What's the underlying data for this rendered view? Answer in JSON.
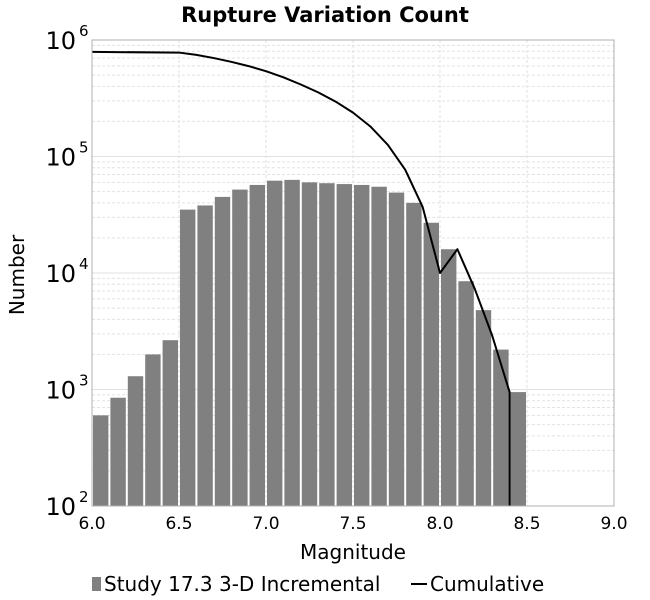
{
  "chart_data": {
    "type": "bar",
    "title": "Rupture Variation Count",
    "xlabel": "Magnitude",
    "ylabel": "Number",
    "xlim": [
      6.0,
      9.0
    ],
    "ylim": [
      100,
      1000000
    ],
    "yscale": "log",
    "grid": true,
    "legend_position": "bottom",
    "xticks": [
      "6.0",
      "6.5",
      "7.0",
      "7.5",
      "8.0",
      "8.5",
      "9.0"
    ],
    "yticks": [
      {
        "base": "10",
        "exp": "2",
        "value": 100
      },
      {
        "base": "10",
        "exp": "3",
        "value": 1000
      },
      {
        "base": "10",
        "exp": "4",
        "value": 10000
      },
      {
        "base": "10",
        "exp": "5",
        "value": 100000
      },
      {
        "base": "10",
        "exp": "6",
        "value": 1000000
      }
    ],
    "series": [
      {
        "name": "Study 17.3 3-D Incremental",
        "kind": "bar",
        "color": "#808080",
        "bin_width": 0.1,
        "x": [
          6.05,
          6.15,
          6.25,
          6.35,
          6.45,
          6.55,
          6.65,
          6.75,
          6.85,
          6.95,
          7.05,
          7.15,
          7.25,
          7.35,
          7.45,
          7.55,
          7.65,
          7.75,
          7.85,
          7.95,
          8.05,
          8.15,
          8.25,
          8.35,
          8.45
        ],
        "values": [
          600,
          850,
          1300,
          2000,
          2650,
          35000,
          38000,
          45000,
          52000,
          57000,
          62000,
          63000,
          60000,
          59000,
          58000,
          57000,
          55000,
          49000,
          40000,
          27000,
          16000,
          8500,
          4800,
          2200,
          950
        ]
      },
      {
        "name": "Cumulative",
        "kind": "line",
        "color": "#000000",
        "x": [
          6.0,
          6.5,
          6.6,
          6.7,
          6.8,
          6.9,
          7.0,
          7.1,
          7.2,
          7.3,
          7.4,
          7.5,
          7.6,
          7.7,
          7.8,
          7.9,
          8.0,
          8.1,
          8.2,
          8.3,
          8.4,
          8.4
        ],
        "values": [
          790000,
          780000,
          745000,
          700000,
          650000,
          597000,
          540000,
          478000,
          415000,
          355000,
          296000,
          238000,
          181000,
          126000,
          77000,
          37000,
          10000,
          16000,
          7300,
          2900,
          950,
          100
        ]
      }
    ]
  },
  "legend": {
    "items": [
      {
        "label": "Study 17.3 3-D Incremental",
        "symbol": "bar",
        "color": "#808080"
      },
      {
        "label": "Cumulative",
        "symbol": "line",
        "color": "#000000"
      }
    ]
  }
}
